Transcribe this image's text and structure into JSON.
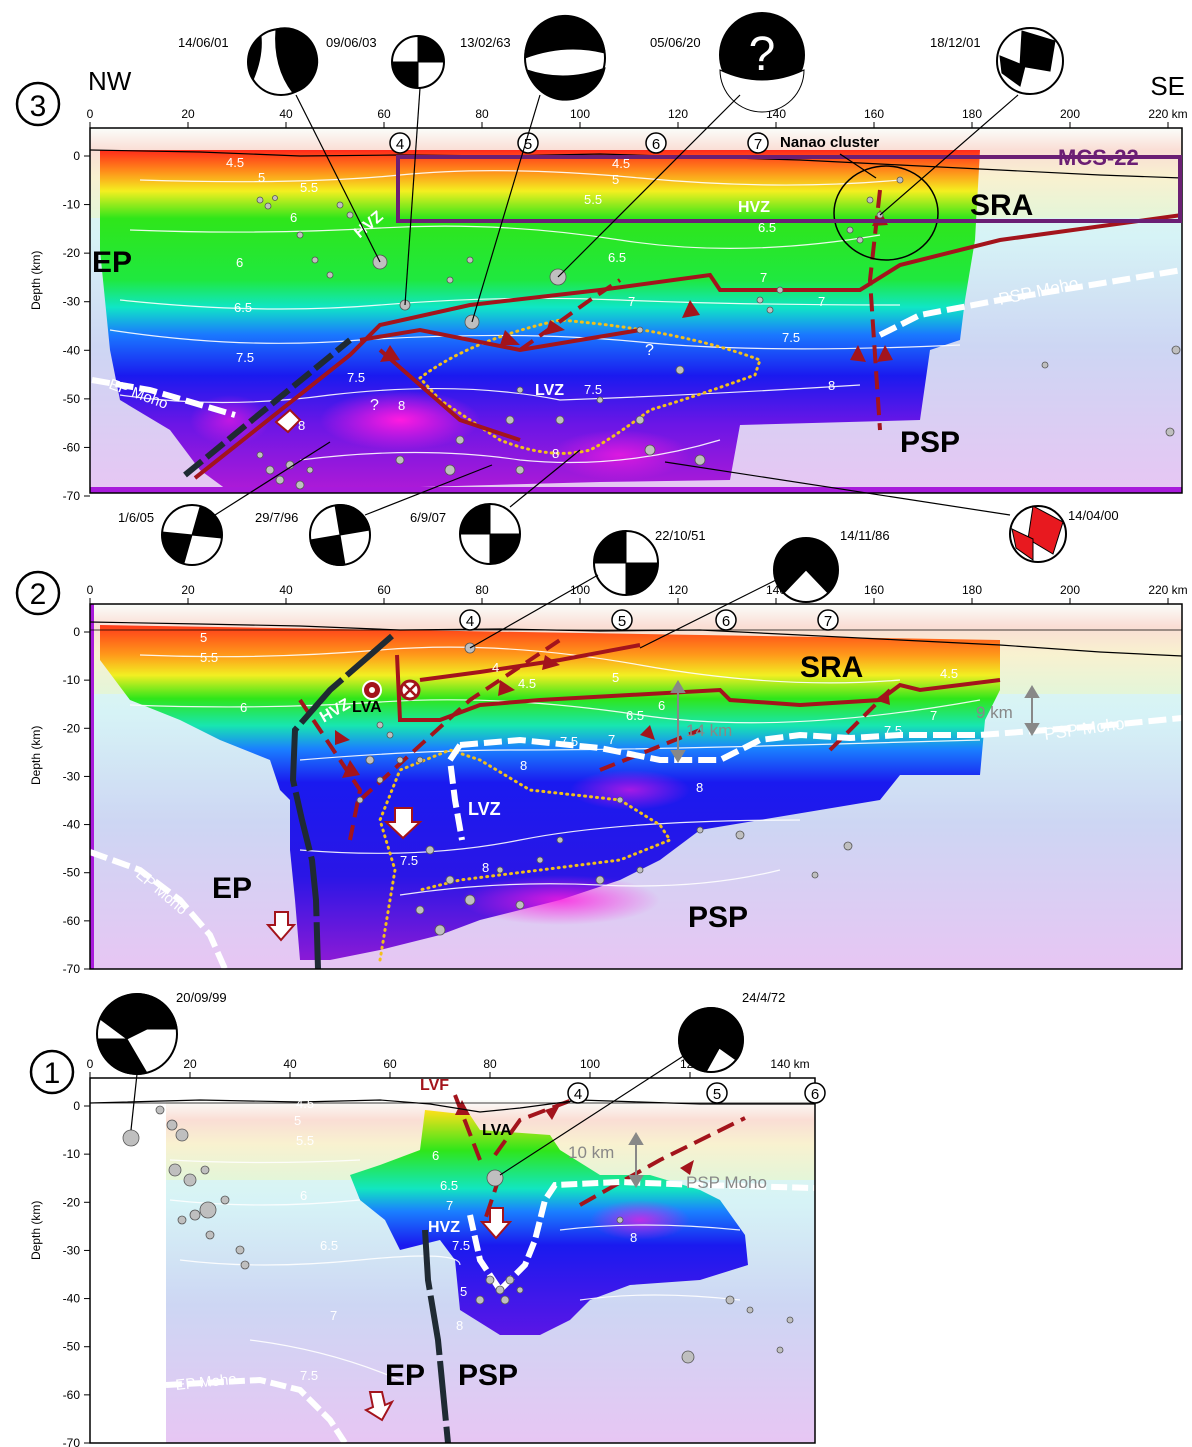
{
  "panel3": {
    "number": "3",
    "nw": "NW",
    "se": "SE",
    "x_ticks": [
      "0",
      "20",
      "40",
      "60",
      "80",
      "100",
      "120",
      "140",
      "160",
      "180",
      "200",
      "220 km"
    ],
    "y_ticks": [
      "0",
      "-10",
      "-20",
      "-30",
      "-40",
      "-50",
      "-60",
      "-70"
    ],
    "y_label": "Depth (km)",
    "markers": [
      "4",
      "5",
      "6",
      "7"
    ],
    "nanao": "Nanao cluster",
    "mcs": "MCS-22",
    "labels": {
      "sra": "SRA",
      "ep": "EP",
      "psp": "PSP",
      "hvz1": "HVZ",
      "hvz2": "HVZ",
      "lvz": "LVZ",
      "ep_moho": "EP Moho",
      "psp_moho": "PSP Moho",
      "q1": "?",
      "q2": "?"
    },
    "contours": [
      "4.5",
      "5",
      "5.5",
      "6",
      "6",
      "6.5",
      "6.5",
      "7",
      "7",
      "7.5",
      "7.5",
      "8",
      "8",
      "8",
      "4.5",
      "5",
      "5.5",
      "6.5",
      "7",
      "7.5",
      "7.5",
      "8"
    ],
    "mechanisms_top": [
      "14/06/01",
      "09/06/03",
      "13/02/63",
      "05/06/20",
      "18/12/01"
    ],
    "mechanisms_bottom": [
      "1/6/05",
      "29/7/96",
      "6/9/07",
      "14/04/00"
    ],
    "q_mark": "?"
  },
  "panel2": {
    "number": "2",
    "x_ticks": [
      "0",
      "20",
      "40",
      "60",
      "80",
      "100",
      "120",
      "140",
      "160",
      "180",
      "200",
      "220 km"
    ],
    "y_ticks": [
      "0",
      "-10",
      "-20",
      "-30",
      "-40",
      "-50",
      "-60",
      "-70"
    ],
    "y_label": "Depth (km)",
    "markers": [
      "4",
      "5",
      "6",
      "7"
    ],
    "labels": {
      "sra": "SRA",
      "ep": "EP",
      "psp": "PSP",
      "hvz": "HVZ",
      "lva": "LVA",
      "lvz": "LVZ",
      "ep_moho": "EP Moho",
      "psp_moho": "PSP Moho",
      "km14": "14 km",
      "km9": "9 km"
    },
    "contours": [
      "5",
      "5.5",
      "6",
      "4",
      "4.5",
      "5",
      "6",
      "6.5",
      "7",
      "7.5",
      "7.5",
      "8",
      "8",
      "7.5",
      "8",
      "4.5",
      "7"
    ],
    "mechanisms": [
      "22/10/51",
      "14/11/86"
    ]
  },
  "panel1": {
    "number": "1",
    "x_ticks": [
      "0",
      "20",
      "40",
      "60",
      "80",
      "100",
      "120",
      "140 km"
    ],
    "y_ticks": [
      "0",
      "-10",
      "-20",
      "-30",
      "-40",
      "-50",
      "-60",
      "-70"
    ],
    "y_label": "Depth (km)",
    "markers": [
      "4",
      "5",
      "6"
    ],
    "labels": {
      "lvf": "LVF",
      "lva": "LVA",
      "hvz": "HVZ",
      "ep": "EP",
      "psp": "PSP",
      "ep_moho": "EP Moho",
      "psp_moho": "PSP Moho",
      "km10": "10 km"
    },
    "contours": [
      "4.5",
      "5",
      "5.5",
      "6",
      "6",
      "6.5",
      "6.5",
      "7",
      "7",
      "7.5",
      "7.5",
      "8",
      "8",
      "5"
    ],
    "mechanisms": [
      "20/09/99",
      "24/4/72"
    ]
  },
  "colors": {
    "fault": "#a3141c",
    "moho": "#ffffff",
    "mcs_box": "#6b1f74",
    "slab": "#1f2a33",
    "highlight_mech": "#e8191f"
  }
}
